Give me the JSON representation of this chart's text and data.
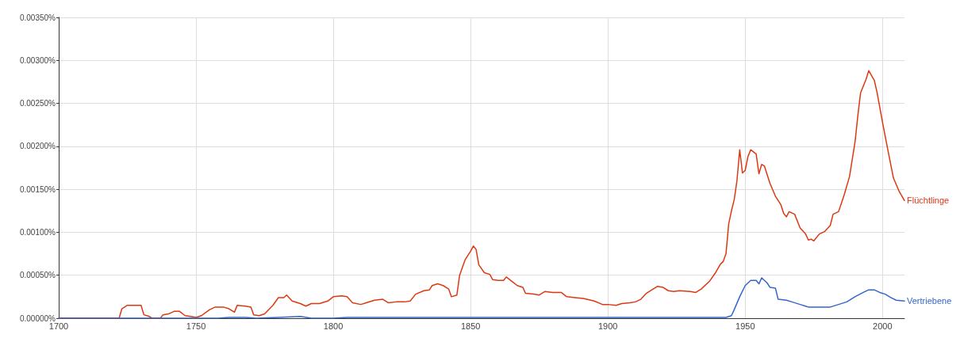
{
  "chart_data": {
    "type": "line",
    "xlim": [
      1700,
      2008
    ],
    "xticks": [
      1700,
      1750,
      1800,
      1850,
      1900,
      1950,
      2000
    ],
    "ylim": [
      0,
      0.0035
    ],
    "yticks": [
      {
        "value": 0,
        "label": "0.00000%"
      },
      {
        "value": 0.0005,
        "label": "0.00050%"
      },
      {
        "value": 0.001,
        "label": "0.00100%"
      },
      {
        "value": 0.0015,
        "label": "0.00150%"
      },
      {
        "value": 0.002,
        "label": "0.00200%"
      },
      {
        "value": 0.0025,
        "label": "0.00250%"
      },
      {
        "value": 0.003,
        "label": "0.00300%"
      },
      {
        "value": 0.0035,
        "label": "0.00350%"
      }
    ],
    "grid": true,
    "marker": "none",
    "line_style": "solid",
    "series": [
      {
        "name": "Flüchtlinge",
        "color": "#dc3912",
        "x": [
          1700,
          1722,
          1723,
          1725,
          1730,
          1731,
          1733,
          1734,
          1737,
          1738,
          1740,
          1742,
          1744,
          1746,
          1748,
          1750,
          1752,
          1755,
          1757,
          1760,
          1762,
          1764,
          1765,
          1768,
          1770,
          1771,
          1773,
          1775,
          1778,
          1780,
          1782,
          1783,
          1785,
          1788,
          1790,
          1792,
          1795,
          1798,
          1800,
          1803,
          1805,
          1807,
          1810,
          1812,
          1815,
          1818,
          1820,
          1823,
          1826,
          1828,
          1830,
          1833,
          1835,
          1836,
          1838,
          1840,
          1842,
          1843,
          1845,
          1846,
          1848,
          1850,
          1851,
          1852,
          1853,
          1855,
          1857,
          1858,
          1860,
          1862,
          1863,
          1865,
          1867,
          1869,
          1870,
          1873,
          1875,
          1877,
          1880,
          1883,
          1885,
          1888,
          1891,
          1895,
          1898,
          1900,
          1903,
          1905,
          1908,
          1910,
          1912,
          1914,
          1916,
          1918,
          1920,
          1922,
          1924,
          1926,
          1930,
          1932,
          1934,
          1937,
          1939,
          1941,
          1942,
          1943,
          1944,
          1945,
          1946,
          1947,
          1948,
          1949,
          1950,
          1951,
          1952,
          1954,
          1955,
          1956,
          1957,
          1959,
          1961,
          1963,
          1964,
          1965,
          1966,
          1968,
          1970,
          1972,
          1973,
          1974,
          1975,
          1977,
          1979,
          1981,
          1982,
          1984,
          1986,
          1988,
          1990,
          1991,
          1992,
          1994,
          1995,
          1997,
          1998,
          2000,
          2002,
          2004,
          2006,
          2008
        ],
        "values": [
          0,
          0,
          0.00011,
          0.00015,
          0.00015,
          4e-05,
          2e-05,
          0,
          0,
          4e-05,
          5e-05,
          8e-05,
          8e-05,
          3e-05,
          2e-05,
          1e-05,
          3e-05,
          0.0001,
          0.00013,
          0.00013,
          0.00011,
          7e-05,
          0.00015,
          0.00014,
          0.00013,
          4e-05,
          3e-05,
          5e-05,
          0.00015,
          0.00024,
          0.00024,
          0.00027,
          0.0002,
          0.00017,
          0.00014,
          0.00017,
          0.00017,
          0.0002,
          0.00025,
          0.00026,
          0.00025,
          0.00018,
          0.00016,
          0.00018,
          0.00021,
          0.00022,
          0.00018,
          0.00019,
          0.00019,
          0.0002,
          0.00028,
          0.00032,
          0.00033,
          0.00038,
          0.0004,
          0.00038,
          0.00034,
          0.00025,
          0.00027,
          0.0005,
          0.00068,
          0.00078,
          0.00084,
          0.0008,
          0.00062,
          0.00053,
          0.00051,
          0.00045,
          0.00044,
          0.00044,
          0.00048,
          0.00043,
          0.00038,
          0.00036,
          0.00029,
          0.00028,
          0.00027,
          0.00031,
          0.0003,
          0.0003,
          0.00025,
          0.00024,
          0.00023,
          0.0002,
          0.00016,
          0.00016,
          0.00015,
          0.00017,
          0.00018,
          0.00019,
          0.00022,
          0.00029,
          0.00033,
          0.00037,
          0.00036,
          0.00032,
          0.00031,
          0.00032,
          0.00031,
          0.0003,
          0.00034,
          0.00043,
          0.00052,
          0.00063,
          0.00066,
          0.00075,
          0.0011,
          0.00125,
          0.00138,
          0.0016,
          0.00196,
          0.00169,
          0.00172,
          0.00188,
          0.00196,
          0.00191,
          0.00168,
          0.00179,
          0.00177,
          0.00157,
          0.00142,
          0.00132,
          0.00122,
          0.00118,
          0.00124,
          0.00121,
          0.00105,
          0.00098,
          0.00091,
          0.00092,
          0.0009,
          0.00098,
          0.00101,
          0.00108,
          0.00121,
          0.00124,
          0.00143,
          0.00165,
          0.00205,
          0.00235,
          0.00262,
          0.00278,
          0.00288,
          0.00277,
          0.00263,
          0.00228,
          0.00195,
          0.00163,
          0.00148,
          0.00137
        ]
      },
      {
        "name": "Vertriebene",
        "color": "#3366cc",
        "x": [
          1700,
          1758,
          1762,
          1768,
          1772,
          1780,
          1788,
          1792,
          1800,
          1805,
          1810,
          1943,
          1945,
          1946,
          1948,
          1950,
          1952,
          1954,
          1955,
          1956,
          1958,
          1959,
          1961,
          1962,
          1965,
          1967,
          1970,
          1973,
          1975,
          1978,
          1981,
          1984,
          1987,
          1990,
          1993,
          1995,
          1997,
          1999,
          2001,
          2003,
          2005,
          2008
        ],
        "values": [
          0,
          0,
          1e-05,
          1e-05,
          0,
          1e-05,
          2e-05,
          0,
          0,
          1e-05,
          1e-05,
          1e-05,
          3e-05,
          0.0001,
          0.00025,
          0.00038,
          0.00044,
          0.00044,
          0.0004,
          0.00047,
          0.00041,
          0.00036,
          0.00035,
          0.00022,
          0.00021,
          0.00019,
          0.00016,
          0.00013,
          0.00013,
          0.00013,
          0.00013,
          0.00016,
          0.00019,
          0.00025,
          0.0003,
          0.00033,
          0.00033,
          0.0003,
          0.00028,
          0.00024,
          0.00021,
          0.0002
        ]
      }
    ]
  }
}
